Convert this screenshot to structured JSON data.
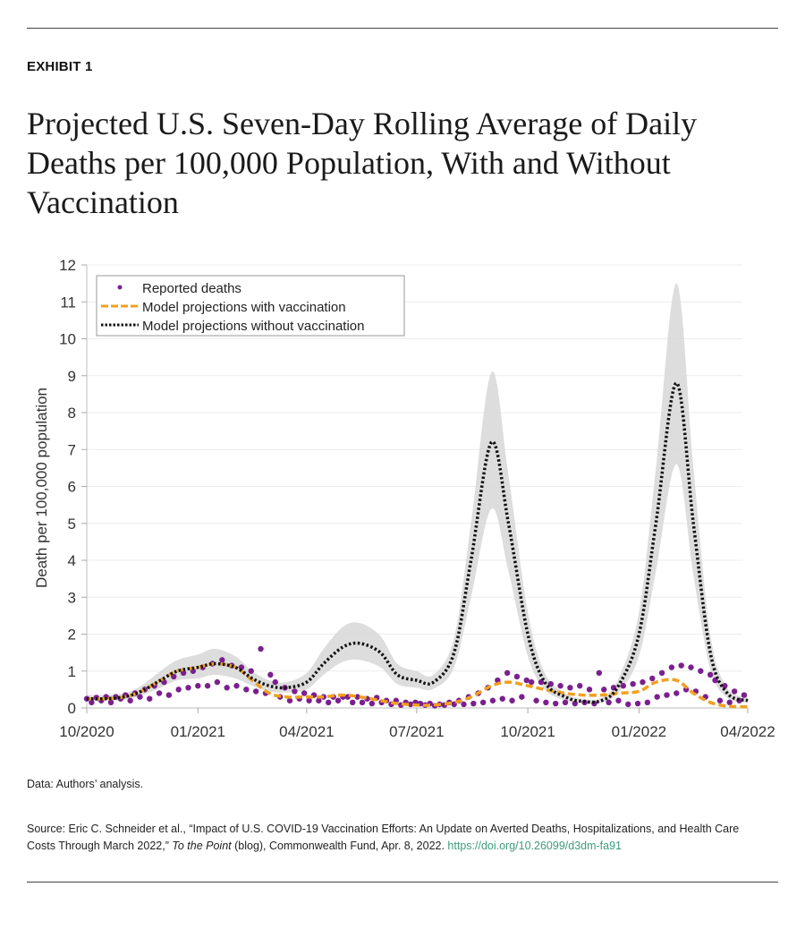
{
  "exhibit_label": "EXHIBIT 1",
  "title": "Projected U.S. Seven-Day Rolling Average of Daily Deaths per 100,000 Population, With and Without Vaccination",
  "note": "Data: Authors’ analysis.",
  "source": {
    "prefix": "Source: Eric C. Schneider et al., “Impact of U.S. COVID-19 Vaccination Efforts: An Update on Averted Deaths, Hospitalizations, and Health Care Costs Through March 2022,” ",
    "italic": "To the Point",
    "suffix": " (blog), Commonwealth Fund, Apr. 8, 2022. ",
    "link": "https://doi.org/10.26099/d3dm-fa91"
  },
  "chart_data": {
    "type": "line",
    "title": "",
    "xlabel": "",
    "ylabel": "Death per 100,000 population",
    "xlim": [
      "2020-10-01",
      "2022-04-01"
    ],
    "ylim": [
      0,
      12
    ],
    "x_ticks": [
      "10/2020",
      "01/2021",
      "04/2021",
      "07/2021",
      "10/2021",
      "01/2022",
      "04/2022"
    ],
    "x_tick_dates": [
      "2020-10-01",
      "2021-01-01",
      "2021-04-01",
      "2021-07-01",
      "2021-10-01",
      "2022-01-01",
      "2022-04-01"
    ],
    "y_ticks": [
      0,
      1,
      2,
      3,
      4,
      5,
      6,
      7,
      8,
      9,
      10,
      11,
      12
    ],
    "grid": "horizontal",
    "legend_position": "top-left",
    "colors": {
      "reported": "#7b1f8f",
      "with_vaccination": "#f0a020",
      "without_vaccination": "#111111",
      "band": "#d9d9d9"
    },
    "x": [
      "2020-10-01",
      "2020-10-15",
      "2020-11-01",
      "2020-11-15",
      "2020-12-01",
      "2020-12-15",
      "2021-01-01",
      "2021-01-15",
      "2021-02-01",
      "2021-02-15",
      "2021-03-01",
      "2021-03-15",
      "2021-04-01",
      "2021-04-15",
      "2021-05-01",
      "2021-05-15",
      "2021-06-01",
      "2021-06-15",
      "2021-07-01",
      "2021-07-15",
      "2021-08-01",
      "2021-08-15",
      "2021-09-01",
      "2021-09-15",
      "2021-10-01",
      "2021-10-15",
      "2021-11-01",
      "2021-11-15",
      "2021-12-01",
      "2021-12-15",
      "2022-01-01",
      "2022-01-15",
      "2022-02-01",
      "2022-02-15",
      "2022-03-01",
      "2022-03-15",
      "2022-04-01"
    ],
    "series": [
      {
        "name": "Model projections without vaccination",
        "style": "dotted",
        "values": [
          0.25,
          0.25,
          0.3,
          0.45,
          0.75,
          1.0,
          1.1,
          1.2,
          1.1,
          0.8,
          0.6,
          0.55,
          0.7,
          1.2,
          1.65,
          1.75,
          1.5,
          0.9,
          0.75,
          0.7,
          1.5,
          4.0,
          7.2,
          5.0,
          2.0,
          0.7,
          0.3,
          0.18,
          0.2,
          0.6,
          2.0,
          5.0,
          8.8,
          5.0,
          1.5,
          0.4,
          0.2
        ],
        "band_upper": [
          0.35,
          0.35,
          0.4,
          0.6,
          1.0,
          1.3,
          1.45,
          1.6,
          1.4,
          1.0,
          0.75,
          0.7,
          0.95,
          1.6,
          2.2,
          2.3,
          1.95,
          1.2,
          1.0,
          0.9,
          1.9,
          5.0,
          9.1,
          6.3,
          2.6,
          0.95,
          0.4,
          0.25,
          0.28,
          0.8,
          2.6,
          6.5,
          11.5,
          6.5,
          2.0,
          0.55,
          0.3
        ],
        "band_lower": [
          0.18,
          0.18,
          0.22,
          0.33,
          0.55,
          0.75,
          0.8,
          0.9,
          0.8,
          0.6,
          0.45,
          0.42,
          0.5,
          0.9,
          1.25,
          1.3,
          1.1,
          0.65,
          0.55,
          0.52,
          1.1,
          3.0,
          5.4,
          3.7,
          1.4,
          0.5,
          0.2,
          0.12,
          0.14,
          0.42,
          1.4,
          3.7,
          6.6,
          3.6,
          1.05,
          0.28,
          0.14
        ]
      },
      {
        "name": "Model projections with vaccination",
        "style": "dashed",
        "values": [
          0.25,
          0.25,
          0.3,
          0.45,
          0.75,
          1.0,
          1.1,
          1.2,
          1.1,
          0.75,
          0.4,
          0.3,
          0.3,
          0.3,
          0.35,
          0.3,
          0.2,
          0.12,
          0.08,
          0.08,
          0.15,
          0.3,
          0.6,
          0.7,
          0.6,
          0.5,
          0.4,
          0.35,
          0.35,
          0.4,
          0.45,
          0.7,
          0.75,
          0.4,
          0.15,
          0.05,
          0.03
        ]
      }
    ],
    "reported": {
      "name": "Reported deaths",
      "start": "2020-10-01",
      "interval_days": 4,
      "values": [
        0.25,
        0.15,
        0.28,
        0.2,
        0.3,
        0.15,
        0.3,
        0.25,
        0.35,
        0.2,
        0.4,
        0.3,
        0.5,
        0.25,
        0.6,
        0.4,
        0.7,
        0.35,
        0.85,
        0.5,
        0.95,
        0.55,
        1.0,
        0.6,
        1.1,
        0.6,
        1.2,
        0.7,
        1.3,
        0.55,
        1.15,
        0.6,
        1.1,
        0.5,
        1.0,
        0.45,
        1.6,
        0.4,
        0.9,
        0.7,
        0.3,
        0.55,
        0.2,
        0.45,
        0.25,
        0.4,
        0.2,
        0.35,
        0.2,
        0.3,
        0.15,
        0.3,
        0.2,
        0.3,
        0.3,
        0.15,
        0.3,
        0.15,
        0.25,
        0.12,
        0.28,
        0.15,
        0.2,
        0.1,
        0.2,
        0.08,
        0.15,
        0.1,
        0.15,
        0.12,
        0.08,
        0.12,
        0.06,
        0.1,
        0.08,
        0.15,
        0.1,
        0.2,
        0.1,
        0.3,
        0.12,
        0.4,
        0.15,
        0.55,
        0.2,
        0.75,
        0.25,
        0.95,
        0.2,
        0.85,
        0.3,
        0.75,
        0.7,
        0.2,
        0.7,
        0.15,
        0.65,
        0.12,
        0.6,
        0.15,
        0.55,
        0.12,
        0.6,
        0.15,
        0.5,
        0.12,
        0.95,
        0.5,
        0.15,
        0.55,
        0.2,
        0.6,
        0.1,
        0.65,
        0.12,
        0.7,
        0.15,
        0.8,
        0.3,
        0.95,
        0.35,
        1.1,
        0.4,
        1.15,
        0.5,
        1.1,
        0.45,
        1.0,
        0.3,
        0.9,
        0.75,
        0.2,
        0.6,
        0.15,
        0.45,
        0.2,
        0.35,
        0.3
      ]
    }
  }
}
